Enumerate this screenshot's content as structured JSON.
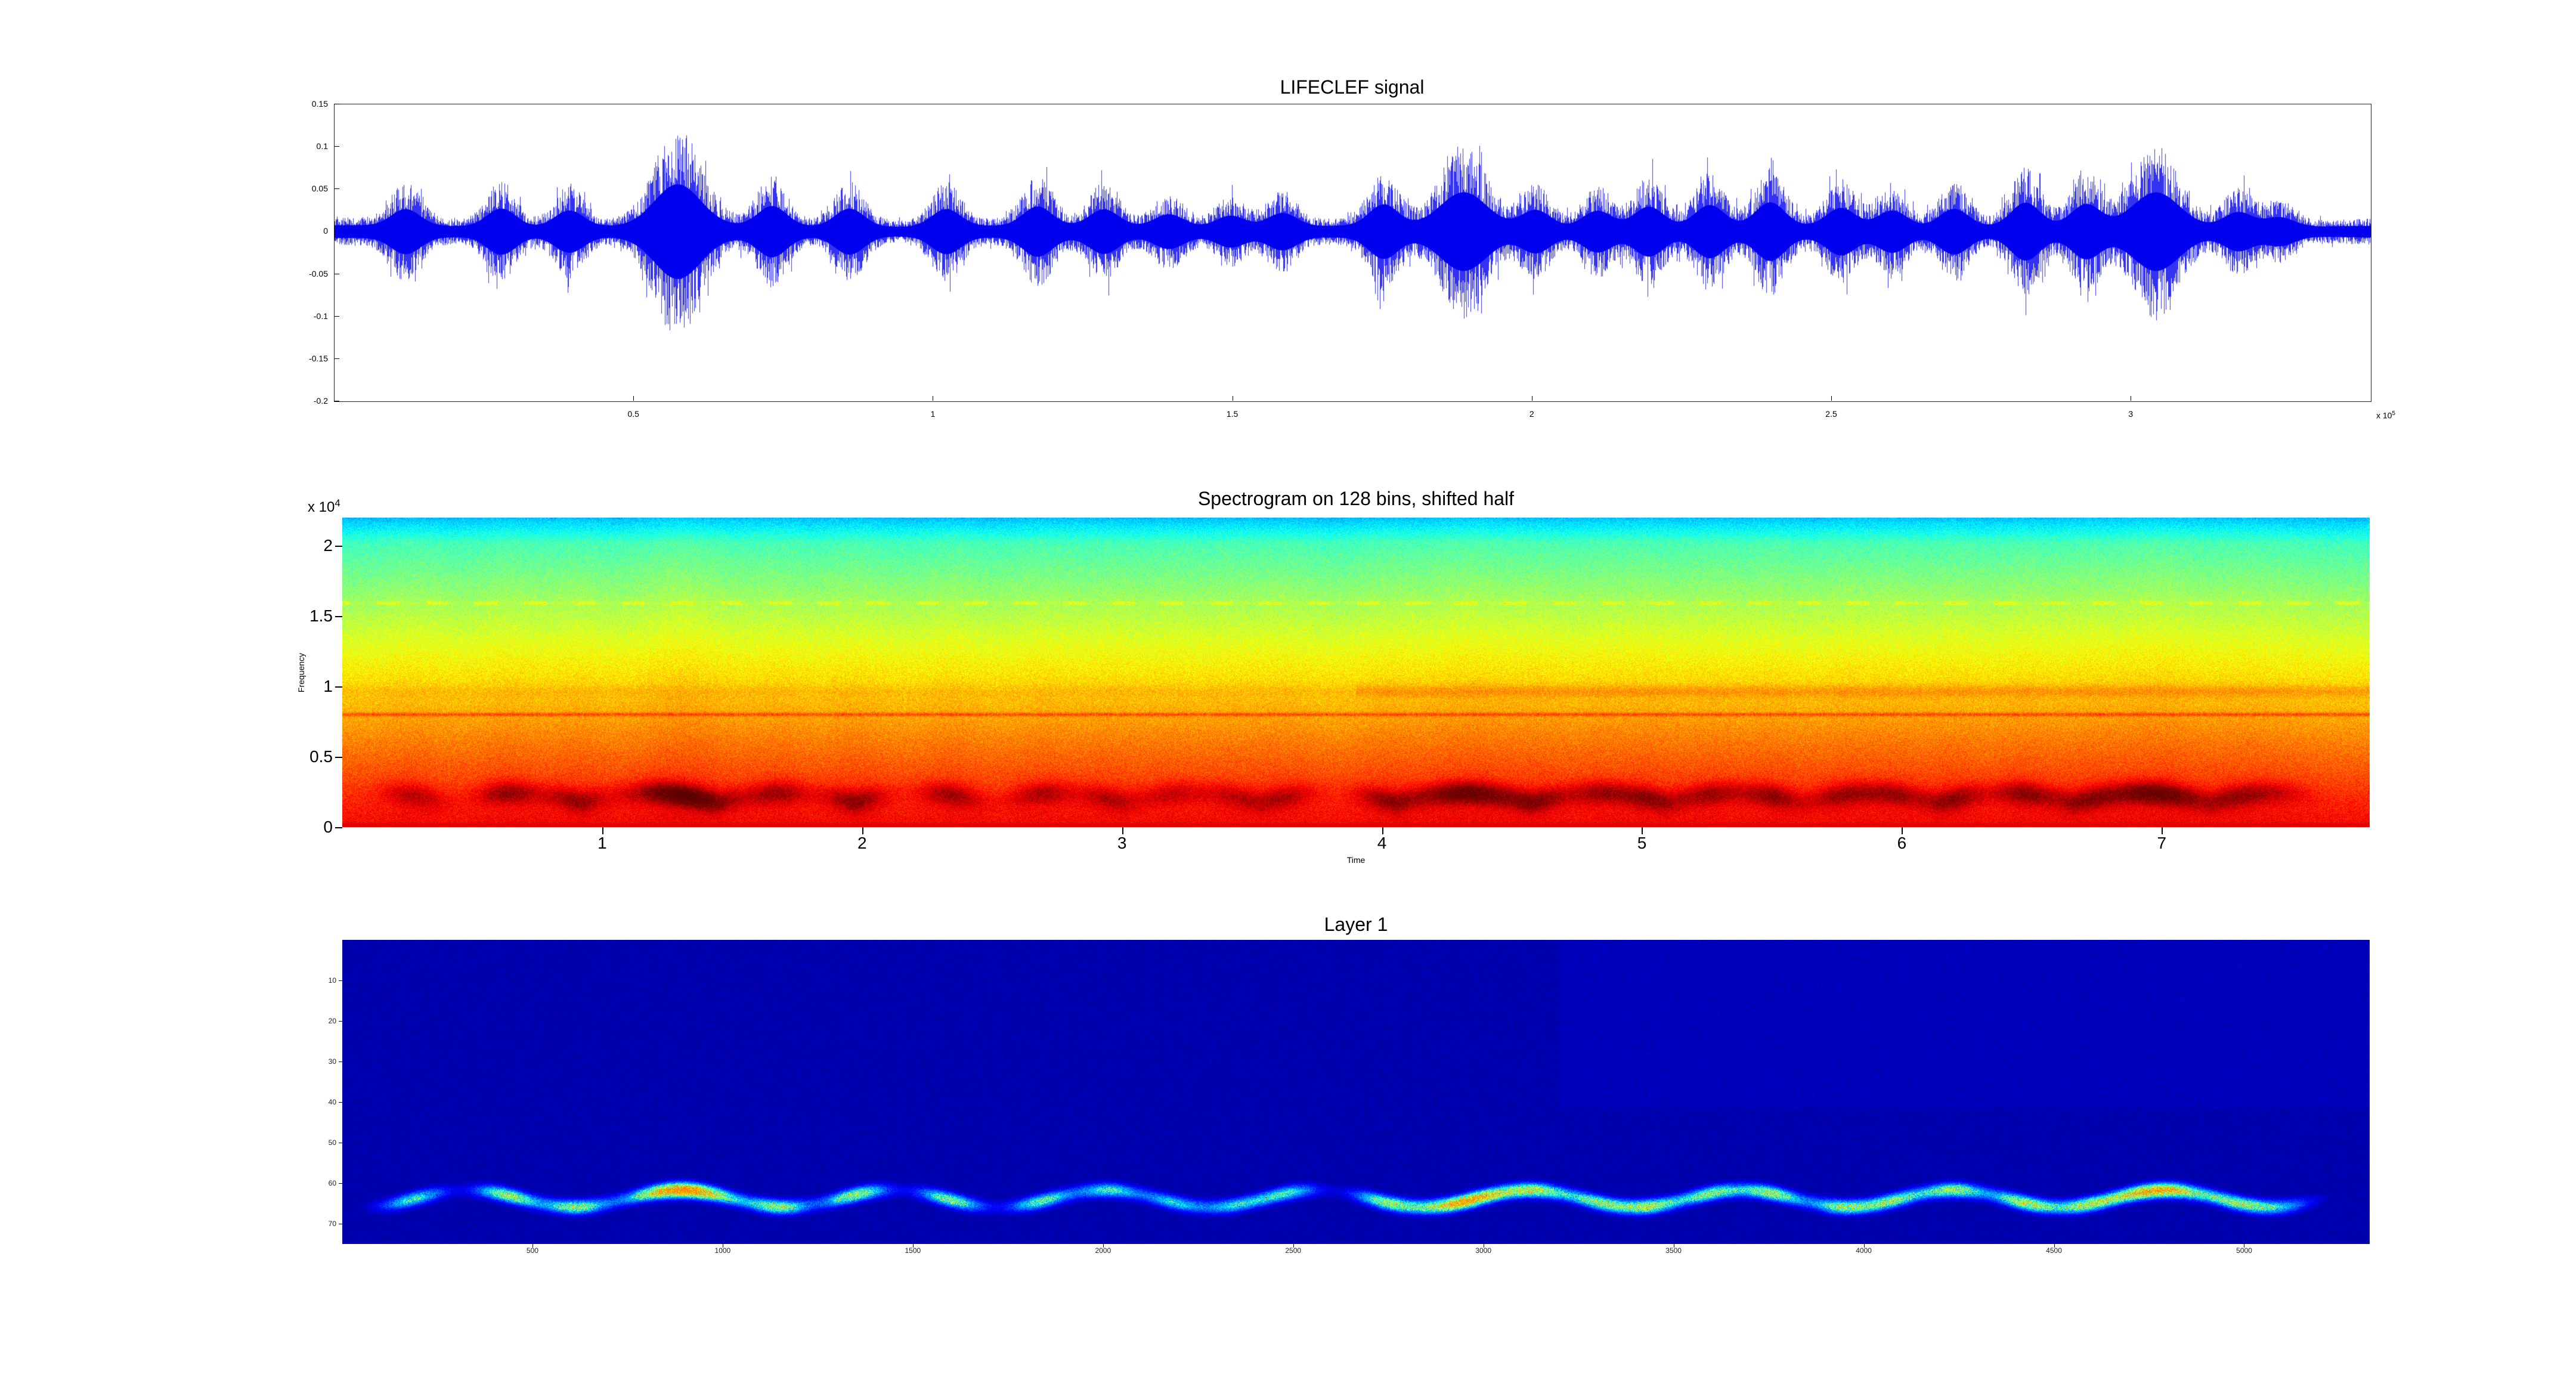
{
  "figure": {
    "background": "#ffffff",
    "titles": {
      "signal": "LIFECLEF signal",
      "spectrogram": "Spectrogram on 128 bins, shifted half",
      "layer1": "Layer 1"
    }
  },
  "chart_data": [
    {
      "type": "line",
      "title": "LIFECLEF signal",
      "line_color": "#0000ee",
      "xlim": [
        0,
        340000
      ],
      "ylim": [
        -0.2,
        0.15
      ],
      "x_tick_values": [
        50000,
        100000,
        150000,
        200000,
        250000,
        300000
      ],
      "x_tick_labels": [
        "0.5",
        "1",
        "1.5",
        "2",
        "2.5",
        "3"
      ],
      "x_scale_label": {
        "text": "x 10",
        "exp": "5"
      },
      "y_tick_values": [
        0.15,
        0.1,
        0.05,
        0,
        -0.05,
        -0.1,
        -0.15,
        -0.2
      ],
      "y_tick_labels": [
        "0.15",
        "0.1",
        "0.05",
        "0",
        "-0.05",
        "-0.1",
        "-0.15",
        "-0.2"
      ],
      "baseline_amplitude": 0.016,
      "bursts": [
        [
          0.035,
          0.4
        ],
        [
          0.082,
          0.55
        ],
        [
          0.115,
          0.5
        ],
        [
          0.168,
          1.0
        ],
        [
          0.215,
          0.5
        ],
        [
          0.253,
          0.55
        ],
        [
          0.3,
          0.5
        ],
        [
          0.345,
          0.45
        ],
        [
          0.378,
          0.4
        ],
        [
          0.41,
          0.35
        ],
        [
          0.44,
          0.35
        ],
        [
          0.465,
          0.4
        ],
        [
          0.515,
          0.5
        ],
        [
          0.555,
          0.85
        ],
        [
          0.59,
          0.5
        ],
        [
          0.62,
          0.5
        ],
        [
          0.645,
          0.55
        ],
        [
          0.675,
          0.5
        ],
        [
          0.705,
          0.55
        ],
        [
          0.74,
          0.5
        ],
        [
          0.765,
          0.5
        ],
        [
          0.795,
          0.55
        ],
        [
          0.83,
          0.6
        ],
        [
          0.86,
          0.5
        ],
        [
          0.895,
          0.85
        ],
        [
          0.935,
          0.45
        ],
        [
          0.955,
          0.3
        ]
      ]
    },
    {
      "type": "heatmap",
      "title": "Spectrogram on 128 bins, shifted half",
      "xlabel": "Time",
      "ylabel": "Frequency",
      "y_scale_label": {
        "text": "x 10",
        "exp": "4"
      },
      "xlim": [
        0,
        7.8
      ],
      "ylim": [
        0,
        22000
      ],
      "x_tick_values": [
        1,
        2,
        3,
        4,
        5,
        6,
        7
      ],
      "x_tick_labels": [
        "1",
        "2",
        "3",
        "4",
        "5",
        "6",
        "7"
      ],
      "y_tick_values": [
        0,
        5000,
        10000,
        15000,
        20000
      ],
      "y_tick_labels": [
        "0",
        "0.5",
        "1",
        "1.5",
        "2"
      ],
      "colormap": "jet",
      "syllable_band_freq": 2000,
      "harmonic_lines_hz": [
        8000,
        16000
      ]
    },
    {
      "type": "heatmap",
      "title": "Layer 1",
      "background_color": "#000080",
      "xlim": [
        0,
        5330
      ],
      "ylim": [
        0,
        75
      ],
      "x_tick_values": [
        500,
        1000,
        1500,
        2000,
        2500,
        3000,
        3500,
        4000,
        4500,
        5000
      ],
      "x_tick_labels": [
        "500",
        "1000",
        "1500",
        "2000",
        "2500",
        "3000",
        "3500",
        "4000",
        "4500",
        "5000"
      ],
      "y_tick_values": [
        10,
        20,
        30,
        40,
        50,
        60,
        70
      ],
      "y_tick_labels": [
        "10",
        "20",
        "30",
        "40",
        "50",
        "60",
        "70"
      ],
      "activation_center_row": 64,
      "colormap": "jet"
    }
  ]
}
